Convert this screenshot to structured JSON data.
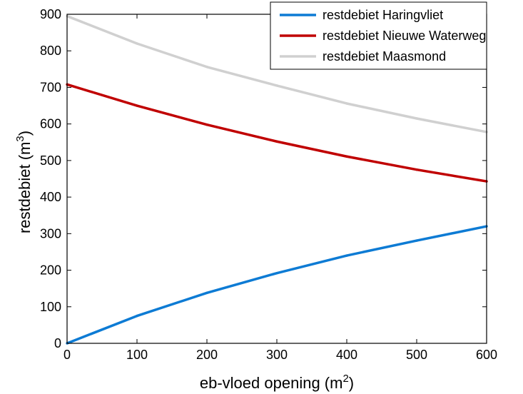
{
  "chart_data": {
    "type": "line",
    "xlabel_text": "eb-vloed opening (m",
    "xlabel_sup": "2",
    "xlabel_close": ")",
    "ylabel_text": "restdebiet (m",
    "ylabel_sup": "3",
    "ylabel_close": ")",
    "xlim": [
      0,
      600
    ],
    "ylim": [
      0,
      900
    ],
    "x_ticks": [
      0,
      100,
      200,
      300,
      400,
      500,
      600
    ],
    "y_ticks": [
      0,
      100,
      200,
      300,
      400,
      500,
      600,
      700,
      800,
      900
    ],
    "x_tick_labels": [
      "0",
      "100",
      "200",
      "300",
      "400",
      "500",
      "600"
    ],
    "y_tick_labels": [
      "0",
      "100",
      "200",
      "300",
      "400",
      "500",
      "600",
      "700",
      "800",
      "900"
    ],
    "grid": false,
    "legend_position": "top-right",
    "x": [
      0,
      100,
      200,
      300,
      400,
      500,
      600
    ],
    "series": [
      {
        "name": "restdebiet Haringvliet",
        "color": "#0d7bd4",
        "values": [
          0,
          75,
          138,
          192,
          240,
          281,
          320
        ]
      },
      {
        "name": "restdebiet Nieuwe Waterweg",
        "color": "#c00000",
        "values": [
          708,
          650,
          598,
          552,
          511,
          475,
          443
        ]
      },
      {
        "name": "restdebiet Maasmond",
        "color": "#d0d0d0",
        "values": [
          895,
          820,
          756,
          705,
          656,
          615,
          578
        ]
      }
    ]
  }
}
